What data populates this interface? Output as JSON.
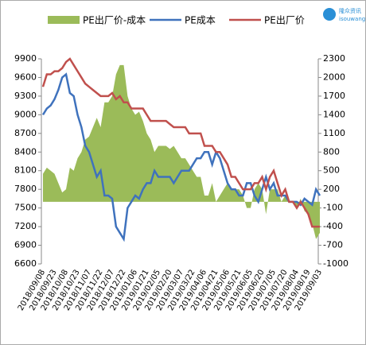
{
  "chart_data": {
    "type": "combo",
    "logo_text": [
      "隆众资讯",
      "isouwang"
    ],
    "categories": [
      "2018/09/08",
      null,
      null,
      "2018/09/23",
      null,
      null,
      "2018/10/08",
      null,
      null,
      "2018/10/23",
      null,
      null,
      "2018/11/07",
      null,
      null,
      "2018/11/22",
      null,
      null,
      "2018/12/07",
      null,
      null,
      "2018/12/22",
      null,
      null,
      "2019/01/06",
      null,
      null,
      "2019/01/21",
      null,
      null,
      "2019/02/05",
      null,
      null,
      "2019/02/20",
      null,
      null,
      "2019/03/07",
      null,
      null,
      "2019/03/22",
      null,
      null,
      "2019/04/06",
      null,
      null,
      "2019/04/21",
      null,
      null,
      "2019/05/06",
      null,
      null,
      "2019/05/21",
      null,
      null,
      "2019/06/05",
      null,
      null,
      "2019/06/20",
      null,
      null,
      "2019/07/05",
      null,
      null,
      "2019/07/20",
      null,
      null,
      "2019/08/04",
      null,
      null,
      "2019/08/19",
      null,
      null,
      "2019/09/03"
    ],
    "series": [
      {
        "name": "PE出厂价-成本",
        "type": "area",
        "axis": "y2",
        "color": "#9bbb59",
        "values": [
          450,
          550,
          500,
          450,
          300,
          150,
          200,
          550,
          500,
          700,
          800,
          1000,
          1050,
          1200,
          1350,
          1200,
          1600,
          1600,
          1700,
          2050,
          2200,
          2200,
          1700,
          1500,
          1400,
          1450,
          1300,
          1100,
          1000,
          800,
          900,
          900,
          900,
          850,
          900,
          800,
          700,
          700,
          600,
          500,
          400,
          400,
          100,
          100,
          300,
          0,
          100,
          200,
          300,
          200,
          200,
          200,
          100,
          -100,
          -100,
          200,
          300,
          200,
          -200,
          200,
          200,
          200,
          0,
          100,
          0,
          0,
          -100,
          50,
          -150,
          -200,
          -350,
          -600,
          -500
        ]
      },
      {
        "name": "PE成本",
        "type": "line",
        "color": "#3f72bd",
        "values": [
          9000,
          9100,
          9150,
          9250,
          9400,
          9600,
          9650,
          9350,
          9300,
          9000,
          8800,
          8500,
          8400,
          8200,
          8000,
          8100,
          7700,
          7700,
          7650,
          7200,
          7100,
          7000,
          7500,
          7600,
          7700,
          7650,
          7800,
          7900,
          7900,
          8100,
          8000,
          8000,
          8000,
          8000,
          7900,
          8000,
          8100,
          8100,
          8100,
          8200,
          8300,
          8300,
          8400,
          8400,
          8200,
          8400,
          8300,
          8100,
          7900,
          7800,
          7800,
          7700,
          7700,
          7900,
          7900,
          7700,
          7600,
          7800,
          8000,
          7800,
          7900,
          7700,
          7700,
          7700,
          7600,
          7600,
          7600,
          7550,
          7650,
          7600,
          7550,
          7800,
          7700
        ]
      },
      {
        "name": "PE出厂价",
        "type": "line",
        "color": "#c0504d",
        "values": [
          9450,
          9650,
          9650,
          9700,
          9700,
          9750,
          9850,
          9900,
          9800,
          9700,
          9600,
          9500,
          9450,
          9400,
          9350,
          9300,
          9300,
          9300,
          9350,
          9250,
          9300,
          9200,
          9200,
          9100,
          9100,
          9100,
          9100,
          9000,
          8900,
          8900,
          8900,
          8900,
          8900,
          8850,
          8800,
          8800,
          8800,
          8800,
          8700,
          8700,
          8700,
          8700,
          8500,
          8500,
          8500,
          8400,
          8400,
          8300,
          8200,
          8000,
          8000,
          7900,
          7800,
          7800,
          7800,
          7900,
          7900,
          8000,
          7800,
          8000,
          8100,
          7900,
          7700,
          7800,
          7600,
          7600,
          7500,
          7600,
          7500,
          7400,
          7200,
          7200,
          7200
        ]
      }
    ],
    "ylim": [
      6600,
      9900
    ],
    "yticks": [
      6600,
      6900,
      7200,
      7500,
      7800,
      8100,
      8400,
      8700,
      9000,
      9300,
      9600,
      9900
    ],
    "y2lim": [
      -1000,
      2300
    ],
    "y2ticks": [
      -1000,
      -700,
      -400,
      -100,
      200,
      500,
      800,
      1100,
      1400,
      1700,
      2000,
      2300
    ]
  }
}
